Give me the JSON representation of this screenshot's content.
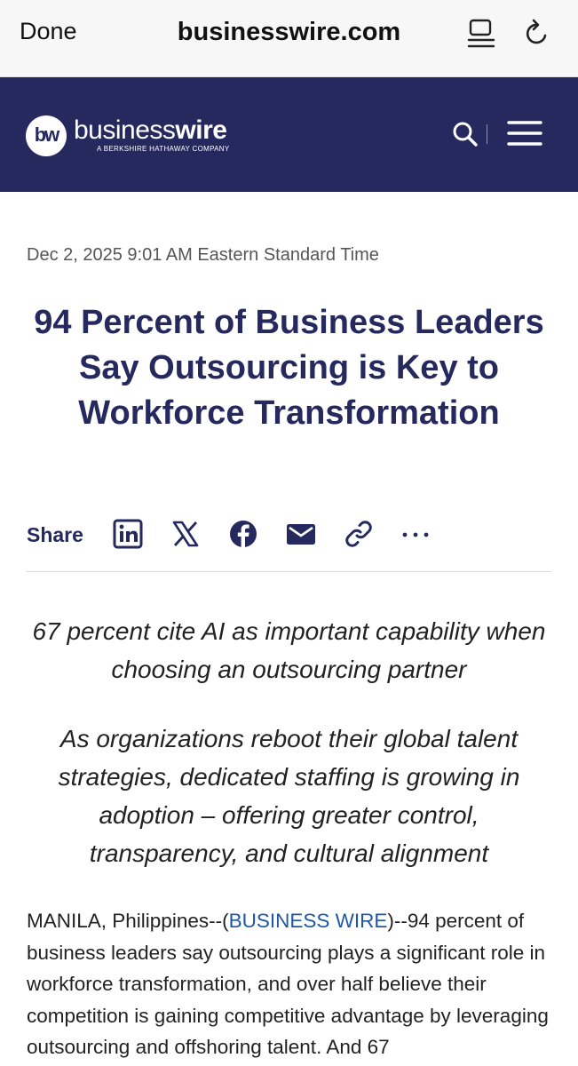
{
  "browser": {
    "done_label": "Done",
    "url": "businesswire.com",
    "icons": [
      "reader-icon",
      "reload-icon"
    ]
  },
  "site_header": {
    "logo_mark": "bw",
    "logo_word_light": "business",
    "logo_word_bold": "wire",
    "logo_tagline": "A BERKSHIRE HATHAWAY COMPANY",
    "icons": [
      "search-icon",
      "menu-icon"
    ],
    "background_color": "#26295e"
  },
  "article": {
    "dateline": "Dec 2, 2025 9:01 AM Eastern Standard Time",
    "headline": "94 Percent of Business Leaders Say Outsourcing is Key to Workforce Transformation",
    "share": {
      "label": "Share",
      "icons": [
        "linkedin-icon",
        "x-icon",
        "facebook-icon",
        "email-icon",
        "link-icon",
        "more-icon"
      ]
    },
    "subheadlines": [
      "67 percent cite AI as important capability when choosing an outsourcing partner",
      "As organizations reboot their global talent strategies, dedicated staffing is growing in adoption – offering greater control, transparency, and cultural alignment"
    ],
    "body_prefix": "MANILA, Philippines--(",
    "body_link": "BUSINESS WIRE",
    "body_text": ")--94 percent of business leaders say outsourcing plays a significant role in workforce transformation, and over half believe their competition is gaining competitive advantage by leveraging outsourcing and offshoring talent. And 67",
    "link_color": "#1f57a6"
  }
}
